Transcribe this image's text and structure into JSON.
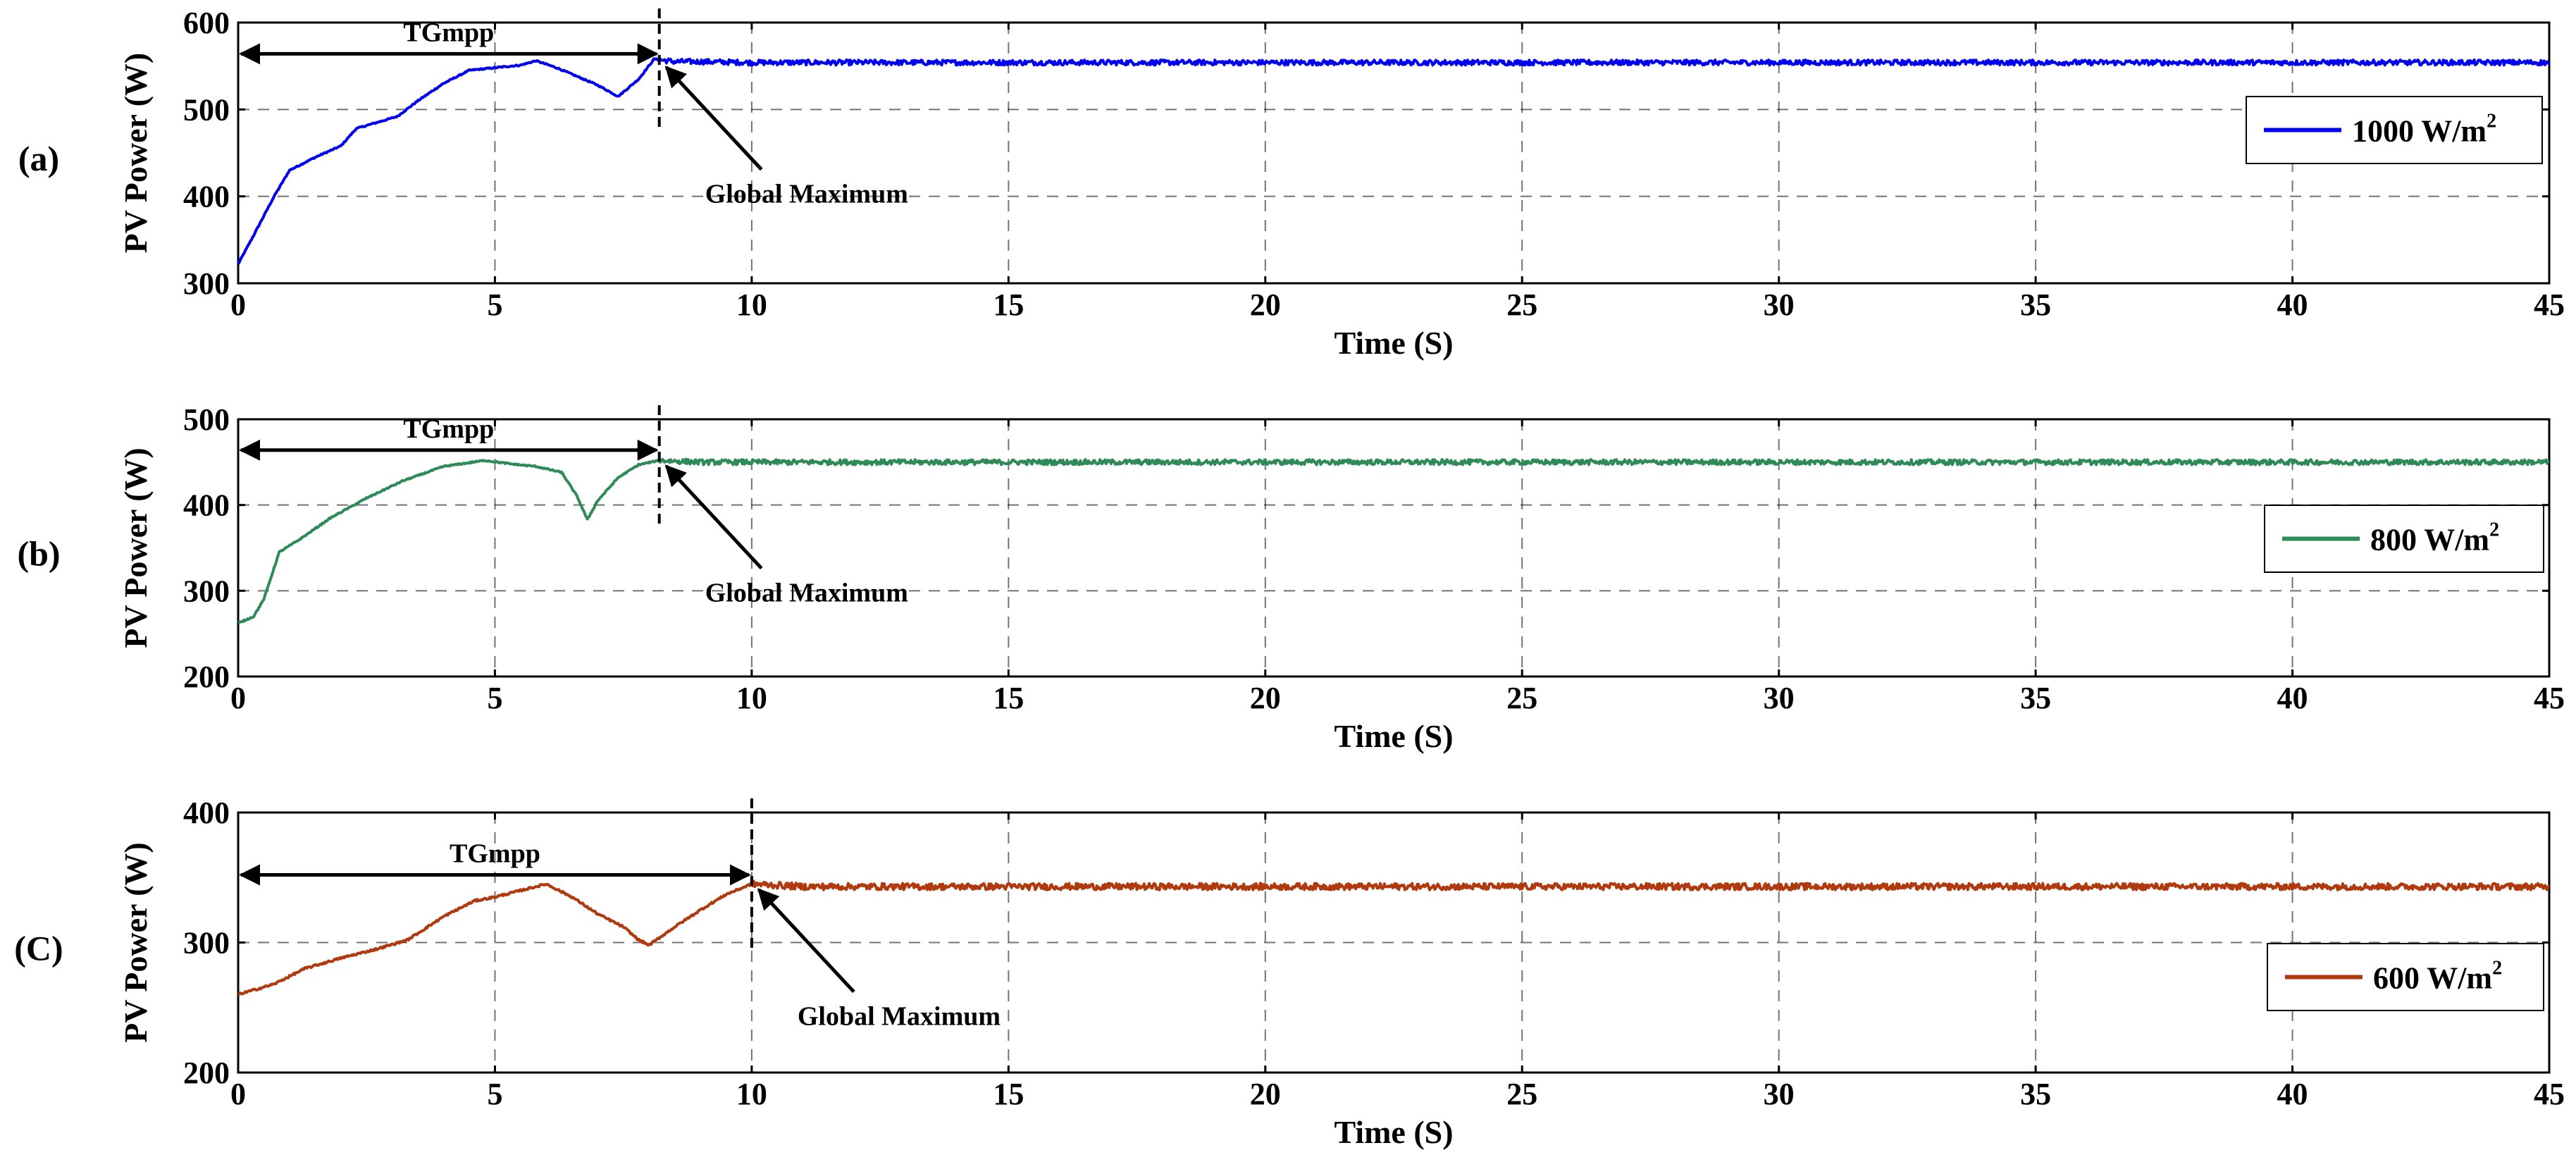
{
  "chart_data": [
    {
      "type": "line",
      "panel_label": "(a)",
      "xlabel": "Time (S)",
      "ylabel": "PV Power (W)",
      "xlim": [
        0,
        45
      ],
      "ylim": [
        300,
        600
      ],
      "xticks": [
        0,
        5,
        10,
        15,
        20,
        25,
        30,
        35,
        40,
        45
      ],
      "yticks": [
        300,
        400,
        500,
        600
      ],
      "grid": true,
      "legend_position": "right",
      "series": [
        {
          "name": "1000 W/m",
          "name_superscript": "2",
          "color": "#0000ee",
          "x": [
            0,
            0.3,
            0.7,
            1.0,
            1.5,
            2.0,
            2.3,
            2.7,
            3.1,
            3.5,
            4.0,
            4.5,
            5.0,
            5.5,
            5.8,
            6.2,
            6.6,
            7.0,
            7.4,
            7.8,
            8.1,
            8.5,
            9.0,
            10,
            45
          ],
          "y": [
            322,
            355,
            400,
            430,
            445,
            458,
            478,
            485,
            492,
            510,
            530,
            545,
            548,
            551,
            556,
            548,
            538,
            528,
            515,
            535,
            558,
            555,
            555,
            554,
            554
          ],
          "noise_from_x": 8.2,
          "noise_amplitude": 3
        }
      ],
      "annotations": {
        "interval_label": "TGmpp",
        "interval_x": [
          0,
          8.2
        ],
        "interval_y": 564,
        "marker_x": 8.2,
        "peak_label": "Global Maximum",
        "peak_point": [
          8.2,
          555
        ]
      }
    },
    {
      "type": "line",
      "panel_label": "(b)",
      "xlabel": "Time (S)",
      "ylabel": "PV Power (W)",
      "xlim": [
        0,
        45
      ],
      "ylim": [
        200,
        500
      ],
      "xticks": [
        0,
        5,
        10,
        15,
        20,
        25,
        30,
        35,
        40,
        45
      ],
      "yticks": [
        200,
        300,
        400,
        500
      ],
      "grid": true,
      "legend_position": "right",
      "series": [
        {
          "name": "800 W/m",
          "name_superscript": "2",
          "color": "#2e8b57",
          "x": [
            0,
            0.3,
            0.5,
            0.8,
            1.2,
            1.8,
            2.5,
            3.2,
            4.0,
            4.8,
            5.3,
            5.8,
            6.3,
            6.6,
            6.8,
            7.0,
            7.4,
            7.8,
            8.2,
            9.0,
            10,
            45
          ],
          "y": [
            262,
            270,
            290,
            345,
            360,
            385,
            408,
            428,
            445,
            452,
            448,
            445,
            438,
            410,
            383,
            405,
            432,
            447,
            452,
            450,
            450,
            450
          ],
          "noise_from_x": 8.2,
          "noise_amplitude": 3
        }
      ],
      "annotations": {
        "interval_label": "TGmpp",
        "interval_x": [
          0,
          8.2
        ],
        "interval_y": 464,
        "marker_x": 8.2,
        "peak_label": "Global Maximum",
        "peak_point": [
          8.2,
          452
        ]
      }
    },
    {
      "type": "line",
      "panel_label": "(C)",
      "xlabel": "Time (S)",
      "ylabel": "PV Power (W)",
      "xlim": [
        0,
        45
      ],
      "ylim": [
        200,
        400
      ],
      "xticks": [
        0,
        5,
        10,
        15,
        20,
        25,
        30,
        35,
        40,
        45
      ],
      "yticks": [
        200,
        300,
        400
      ],
      "grid": true,
      "legend_position": "right",
      "series": [
        {
          "name": "600 W/m",
          "name_superscript": "2",
          "color": "#b03a0e",
          "x": [
            0,
            0.7,
            1.3,
            2.0,
            2.7,
            3.3,
            4.0,
            4.6,
            5.0,
            5.5,
            6.0,
            6.5,
            7.0,
            7.5,
            7.8,
            8.0,
            8.5,
            9.0,
            9.5,
            10.0,
            11,
            45
          ],
          "y": [
            260,
            268,
            280,
            288,
            295,
            302,
            320,
            332,
            335,
            340,
            345,
            335,
            322,
            312,
            302,
            298,
            312,
            325,
            337,
            345,
            343,
            343
          ],
          "noise_from_x": 10.0,
          "noise_amplitude": 2.5
        }
      ],
      "annotations": {
        "interval_label": "TGmpp",
        "interval_x": [
          0,
          10
        ],
        "interval_y": 352,
        "marker_x": 10,
        "peak_label": "Global Maximum",
        "peak_point": [
          10,
          345
        ]
      }
    }
  ]
}
